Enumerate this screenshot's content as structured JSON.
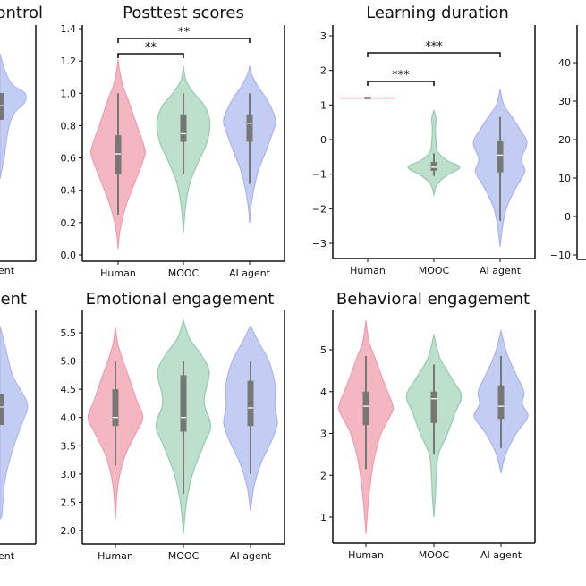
{
  "colors": {
    "Human": "#f4b6c0",
    "MOOC": "#bde0cd",
    "AI agent": "#c3ccf2",
    "Human_edge": "#f19cae",
    "MOOC_edge": "#95cbb0",
    "AI agent_edge": "#a8b5ec",
    "box": "#777777",
    "median": "#ffffff"
  },
  "partial_panels": {
    "top_left": {
      "title_fragment": "ontrol",
      "xlabel_fragment": "ent"
    },
    "bottom_left": {
      "title_fragment": "ent",
      "xlabel_fragment": "ent"
    },
    "top_right": {
      "yticks": [
        40,
        30,
        20,
        10,
        0,
        -10
      ]
    }
  },
  "chart_data": [
    {
      "type": "violin",
      "title": "Posttest scores",
      "categories": [
        "Human",
        "MOOC",
        "AI agent"
      ],
      "ylim": [
        0,
        1.4
      ],
      "yticks": [
        0.0,
        0.2,
        0.4,
        0.6,
        0.8,
        1.0,
        1.2,
        1.4
      ],
      "ytick_decimals": 1,
      "significance": [
        {
          "pair": [
            "Human",
            "MOOC"
          ],
          "label": "**"
        },
        {
          "pair": [
            "Human",
            "AI agent"
          ],
          "label": "**"
        }
      ],
      "series": [
        {
          "name": "Human",
          "density": [
            [
              0.04,
              0
            ],
            [
              0.15,
              0.06
            ],
            [
              0.3,
              0.25
            ],
            [
              0.45,
              0.55
            ],
            [
              0.6,
              0.85
            ],
            [
              0.66,
              0.87
            ],
            [
              0.8,
              0.62
            ],
            [
              0.95,
              0.35
            ],
            [
              1.05,
              0.15
            ],
            [
              1.15,
              0.04
            ],
            [
              1.21,
              0
            ]
          ],
          "box": {
            "whisker_low": 0.25,
            "q1": 0.5,
            "median": 0.625,
            "q3": 0.74,
            "whisker_high": 1.0
          }
        },
        {
          "name": "MOOC",
          "density": [
            [
              0.14,
              0
            ],
            [
              0.3,
              0.07
            ],
            [
              0.45,
              0.22
            ],
            [
              0.58,
              0.5
            ],
            [
              0.7,
              0.78
            ],
            [
              0.82,
              0.87
            ],
            [
              0.92,
              0.7
            ],
            [
              1.0,
              0.35
            ],
            [
              1.08,
              0.08
            ],
            [
              1.17,
              0
            ]
          ],
          "box": {
            "whisker_low": 0.5,
            "q1": 0.7,
            "median": 0.75,
            "q3": 0.87,
            "whisker_high": 1.0
          }
        },
        {
          "name": "AI agent",
          "density": [
            [
              0.2,
              0
            ],
            [
              0.32,
              0.06
            ],
            [
              0.5,
              0.25
            ],
            [
              0.65,
              0.55
            ],
            [
              0.76,
              0.76
            ],
            [
              0.84,
              0.85
            ],
            [
              0.95,
              0.6
            ],
            [
              1.05,
              0.25
            ],
            [
              1.12,
              0.06
            ],
            [
              1.17,
              0
            ]
          ],
          "box": {
            "whisker_low": 0.44,
            "q1": 0.7,
            "median": 0.815,
            "q3": 0.87,
            "whisker_high": 1.0
          }
        }
      ]
    },
    {
      "type": "violin",
      "title": "Learning duration",
      "categories": [
        "Human",
        "MOOC",
        "AI agent"
      ],
      "ylim": [
        -3.4,
        3.2
      ],
      "yticks": [
        -3,
        -2,
        -1,
        0,
        1,
        2,
        3
      ],
      "ytick_decimals": 0,
      "significance": [
        {
          "pair": [
            "Human",
            "MOOC"
          ],
          "label": "***"
        },
        {
          "pair": [
            "Human",
            "AI agent"
          ],
          "label": "***"
        }
      ],
      "series": [
        {
          "name": "Human",
          "density": [
            [
              1.2,
              1
            ]
          ],
          "box": {
            "whisker_low": 1.2,
            "q1": 1.2,
            "median": 1.2,
            "q3": 1.2,
            "whisker_high": 1.2
          }
        },
        {
          "name": "MOOC",
          "density": [
            [
              -1.6,
              0
            ],
            [
              -1.3,
              0.1
            ],
            [
              -1.05,
              0.4
            ],
            [
              -0.8,
              0.85
            ],
            [
              -0.6,
              0.42
            ],
            [
              -0.35,
              0.12
            ],
            [
              -0.05,
              0.07
            ],
            [
              0.3,
              0.05
            ],
            [
              0.6,
              0.07
            ],
            [
              0.85,
              0
            ]
          ],
          "box": {
            "whisker_low": -1.05,
            "q1": -0.9,
            "median": -0.8,
            "q3": -0.65,
            "whisker_high": -0.4
          }
        },
        {
          "name": "AI agent",
          "density": [
            [
              -3.1,
              0
            ],
            [
              -2.5,
              0.08
            ],
            [
              -2.0,
              0.2
            ],
            [
              -1.5,
              0.45
            ],
            [
              -1.0,
              0.78
            ],
            [
              -0.85,
              0.8
            ],
            [
              -0.55,
              0.7
            ],
            [
              -0.1,
              0.88
            ],
            [
              0.3,
              0.65
            ],
            [
              0.7,
              0.35
            ],
            [
              1.0,
              0.12
            ],
            [
              1.45,
              0
            ]
          ],
          "box": {
            "whisker_low": -2.35,
            "q1": -0.95,
            "median": -0.45,
            "q3": -0.05,
            "whisker_high": 0.65
          }
        }
      ]
    },
    {
      "type": "violin",
      "title": "Emotional  engagement",
      "categories": [
        "Human",
        "MOOC",
        "AI agent"
      ],
      "ylim": [
        1.85,
        5.8
      ],
      "yticks": [
        2.0,
        2.5,
        3.0,
        3.5,
        4.0,
        4.5,
        5.0,
        5.5
      ],
      "ytick_decimals": 1,
      "significance": [],
      "series": [
        {
          "name": "Human",
          "density": [
            [
              2.2,
              0
            ],
            [
              2.8,
              0.08
            ],
            [
              3.3,
              0.3
            ],
            [
              3.7,
              0.65
            ],
            [
              4.0,
              0.9
            ],
            [
              4.3,
              0.7
            ],
            [
              4.7,
              0.45
            ],
            [
              5.0,
              0.25
            ],
            [
              5.3,
              0.08
            ],
            [
              5.6,
              0
            ]
          ],
          "box": {
            "whisker_low": 3.15,
            "q1": 3.85,
            "median": 4.0,
            "q3": 4.5,
            "whisker_high": 5.0
          }
        },
        {
          "name": "MOOC",
          "density": [
            [
              1.95,
              0
            ],
            [
              2.5,
              0.1
            ],
            [
              3.0,
              0.3
            ],
            [
              3.5,
              0.65
            ],
            [
              3.85,
              0.9
            ],
            [
              4.2,
              0.7
            ],
            [
              4.4,
              0.7
            ],
            [
              4.8,
              0.85
            ],
            [
              5.1,
              0.6
            ],
            [
              5.4,
              0.2
            ],
            [
              5.72,
              0
            ]
          ],
          "box": {
            "whisker_low": 2.65,
            "q1": 3.75,
            "median": 4.0,
            "q3": 4.75,
            "whisker_high": 5.0
          }
        },
        {
          "name": "AI agent",
          "density": [
            [
              2.35,
              0
            ],
            [
              2.8,
              0.12
            ],
            [
              3.2,
              0.35
            ],
            [
              3.6,
              0.7
            ],
            [
              3.9,
              0.88
            ],
            [
              4.2,
              0.8
            ],
            [
              4.6,
              0.8
            ],
            [
              5.0,
              0.6
            ],
            [
              5.3,
              0.3
            ],
            [
              5.62,
              0
            ]
          ],
          "box": {
            "whisker_low": 3.0,
            "q1": 3.85,
            "median": 4.17,
            "q3": 4.65,
            "whisker_high": 5.0
          }
        }
      ]
    },
    {
      "type": "violin",
      "title": "Behavioral  engagement",
      "categories": [
        "Human",
        "MOOC",
        "AI agent"
      ],
      "ylim": [
        0.4,
        6.0
      ],
      "yticks": [
        1,
        2,
        3,
        4,
        5
      ],
      "ytick_decimals": 0,
      "significance": [],
      "series": [
        {
          "name": "Human",
          "density": [
            [
              0.6,
              0
            ],
            [
              1.2,
              0.06
            ],
            [
              2.0,
              0.18
            ],
            [
              2.5,
              0.3
            ],
            [
              3.0,
              0.5
            ],
            [
              3.5,
              0.85
            ],
            [
              3.7,
              0.87
            ],
            [
              4.2,
              0.6
            ],
            [
              4.8,
              0.3
            ],
            [
              5.2,
              0.1
            ],
            [
              5.7,
              0
            ]
          ],
          "box": {
            "whisker_low": 2.15,
            "q1": 3.2,
            "median": 3.65,
            "q3": 4.0,
            "whisker_high": 4.85
          }
        },
        {
          "name": "MOOC",
          "density": [
            [
              1.0,
              0
            ],
            [
              1.5,
              0.05
            ],
            [
              2.0,
              0.08
            ],
            [
              2.5,
              0.15
            ],
            [
              3.0,
              0.45
            ],
            [
              3.5,
              0.7
            ],
            [
              3.9,
              0.9
            ],
            [
              4.3,
              0.6
            ],
            [
              4.8,
              0.2
            ],
            [
              5.35,
              0
            ]
          ],
          "box": {
            "whisker_low": 2.5,
            "q1": 3.25,
            "median": 3.83,
            "q3": 4.0,
            "whisker_high": 4.65
          }
        },
        {
          "name": "AI agent",
          "density": [
            [
              2.05,
              0
            ],
            [
              2.5,
              0.15
            ],
            [
              3.0,
              0.5
            ],
            [
              3.4,
              0.88
            ],
            [
              3.7,
              0.7
            ],
            [
              4.0,
              0.75
            ],
            [
              4.4,
              0.5
            ],
            [
              4.9,
              0.2
            ],
            [
              5.45,
              0
            ]
          ],
          "box": {
            "whisker_low": 2.65,
            "q1": 3.35,
            "median": 3.65,
            "q3": 4.15,
            "whisker_high": 4.85
          }
        }
      ]
    }
  ]
}
